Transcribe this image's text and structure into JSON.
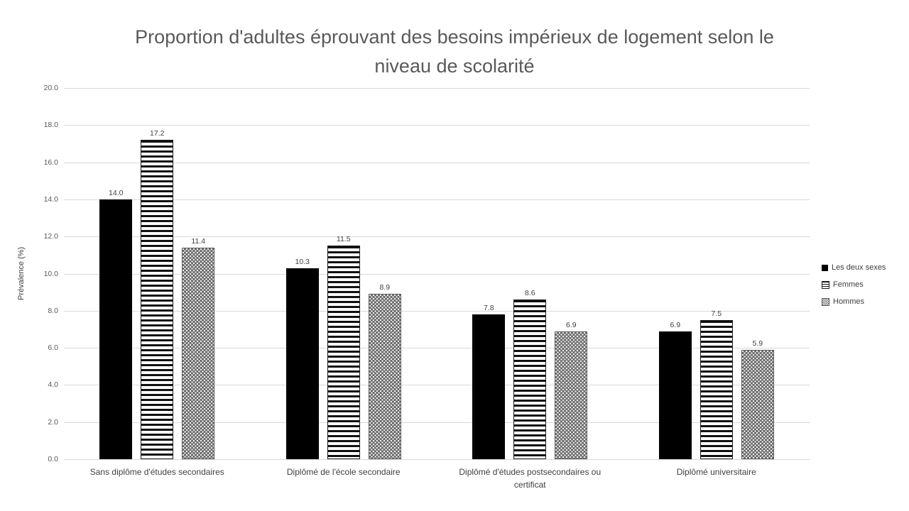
{
  "chart_data": {
    "type": "bar",
    "title": "Proportion d'adultes éprouvant des besoins impérieux de logement selon le niveau de scolarité",
    "xlabel": "",
    "ylabel": "Prévalence (%)",
    "ylim": [
      0,
      20
    ],
    "ytick_step": 2,
    "ytick_format_decimals": 1,
    "grid": true,
    "legend_position": "right",
    "categories": [
      "Sans diplôme d'études secondaires",
      "Diplômé de l'école secondaire",
      "Diplômé d'études postsecondaires ou certificat",
      "Diplômé universitaire"
    ],
    "series": [
      {
        "name": "Les deux sexes",
        "pattern": "solid",
        "color": "#000000",
        "values": [
          14.0,
          10.3,
          7.8,
          6.9
        ]
      },
      {
        "name": "Femmes",
        "pattern": "stripes",
        "color": "#111111",
        "values": [
          17.2,
          11.5,
          8.6,
          7.5
        ]
      },
      {
        "name": "Hommes",
        "pattern": "dots",
        "color": "#6e6e6e",
        "values": [
          11.4,
          8.9,
          6.9,
          5.9
        ]
      }
    ],
    "colors": {
      "title_text": "#595959",
      "axis_text": "#404040",
      "gridline": "#d9d9d9",
      "background": "#ffffff"
    }
  }
}
